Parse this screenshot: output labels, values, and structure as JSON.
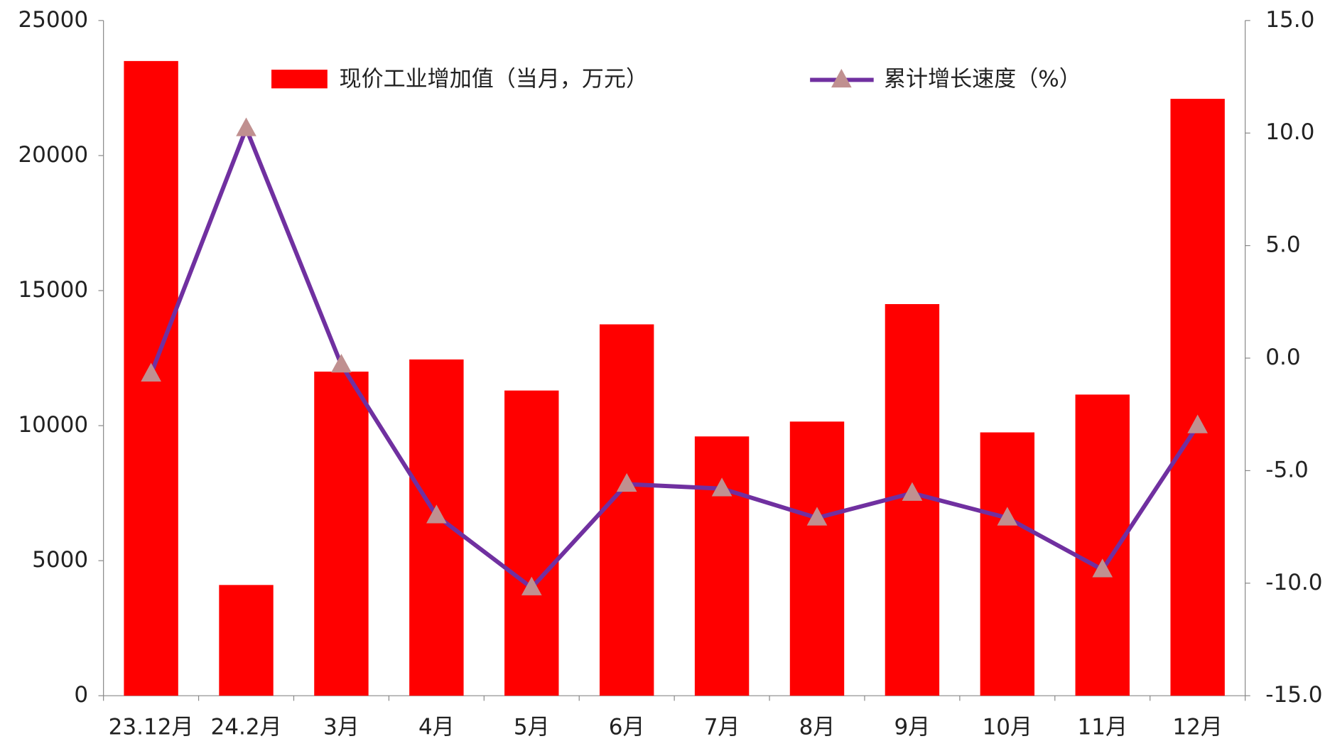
{
  "chart_data": {
    "type": "bar-line",
    "categories": [
      "23.12月",
      "24.2月",
      "3月",
      "4月",
      "5月",
      "6月",
      "7月",
      "8月",
      "9月",
      "10月",
      "11月",
      "12月"
    ],
    "series": [
      {
        "name": "现价工业增加值（当月，万元）",
        "type": "bar",
        "color": "#ff0000",
        "values": [
          23500,
          4100,
          12000,
          12450,
          11300,
          13750,
          9600,
          10150,
          14500,
          9750,
          11150,
          22100
        ]
      },
      {
        "name": "累计增长速度（%）",
        "type": "line",
        "axis": "y2",
        "color": "#7030a0",
        "marker_color": "#c09090",
        "values": [
          -0.7,
          10.2,
          -0.3,
          -7.0,
          -10.2,
          -5.6,
          -5.8,
          -7.1,
          -6.0,
          -7.1,
          -9.4,
          -3.0
        ]
      }
    ],
    "ylim": [
      0,
      25000
    ],
    "yticks": [
      0,
      5000,
      10000,
      15000,
      20000,
      25000
    ],
    "y2lim": [
      -15,
      15
    ],
    "y2ticks": [
      {
        "value": -15,
        "label": "-15.0"
      },
      {
        "value": -10,
        "label": "-10.0"
      },
      {
        "value": -5,
        "label": "-5.0"
      },
      {
        "value": 0,
        "label": "0.0"
      },
      {
        "value": 5,
        "label": "5.0"
      },
      {
        "value": 10,
        "label": "10.0"
      },
      {
        "value": 15,
        "label": "15.0"
      }
    ]
  }
}
